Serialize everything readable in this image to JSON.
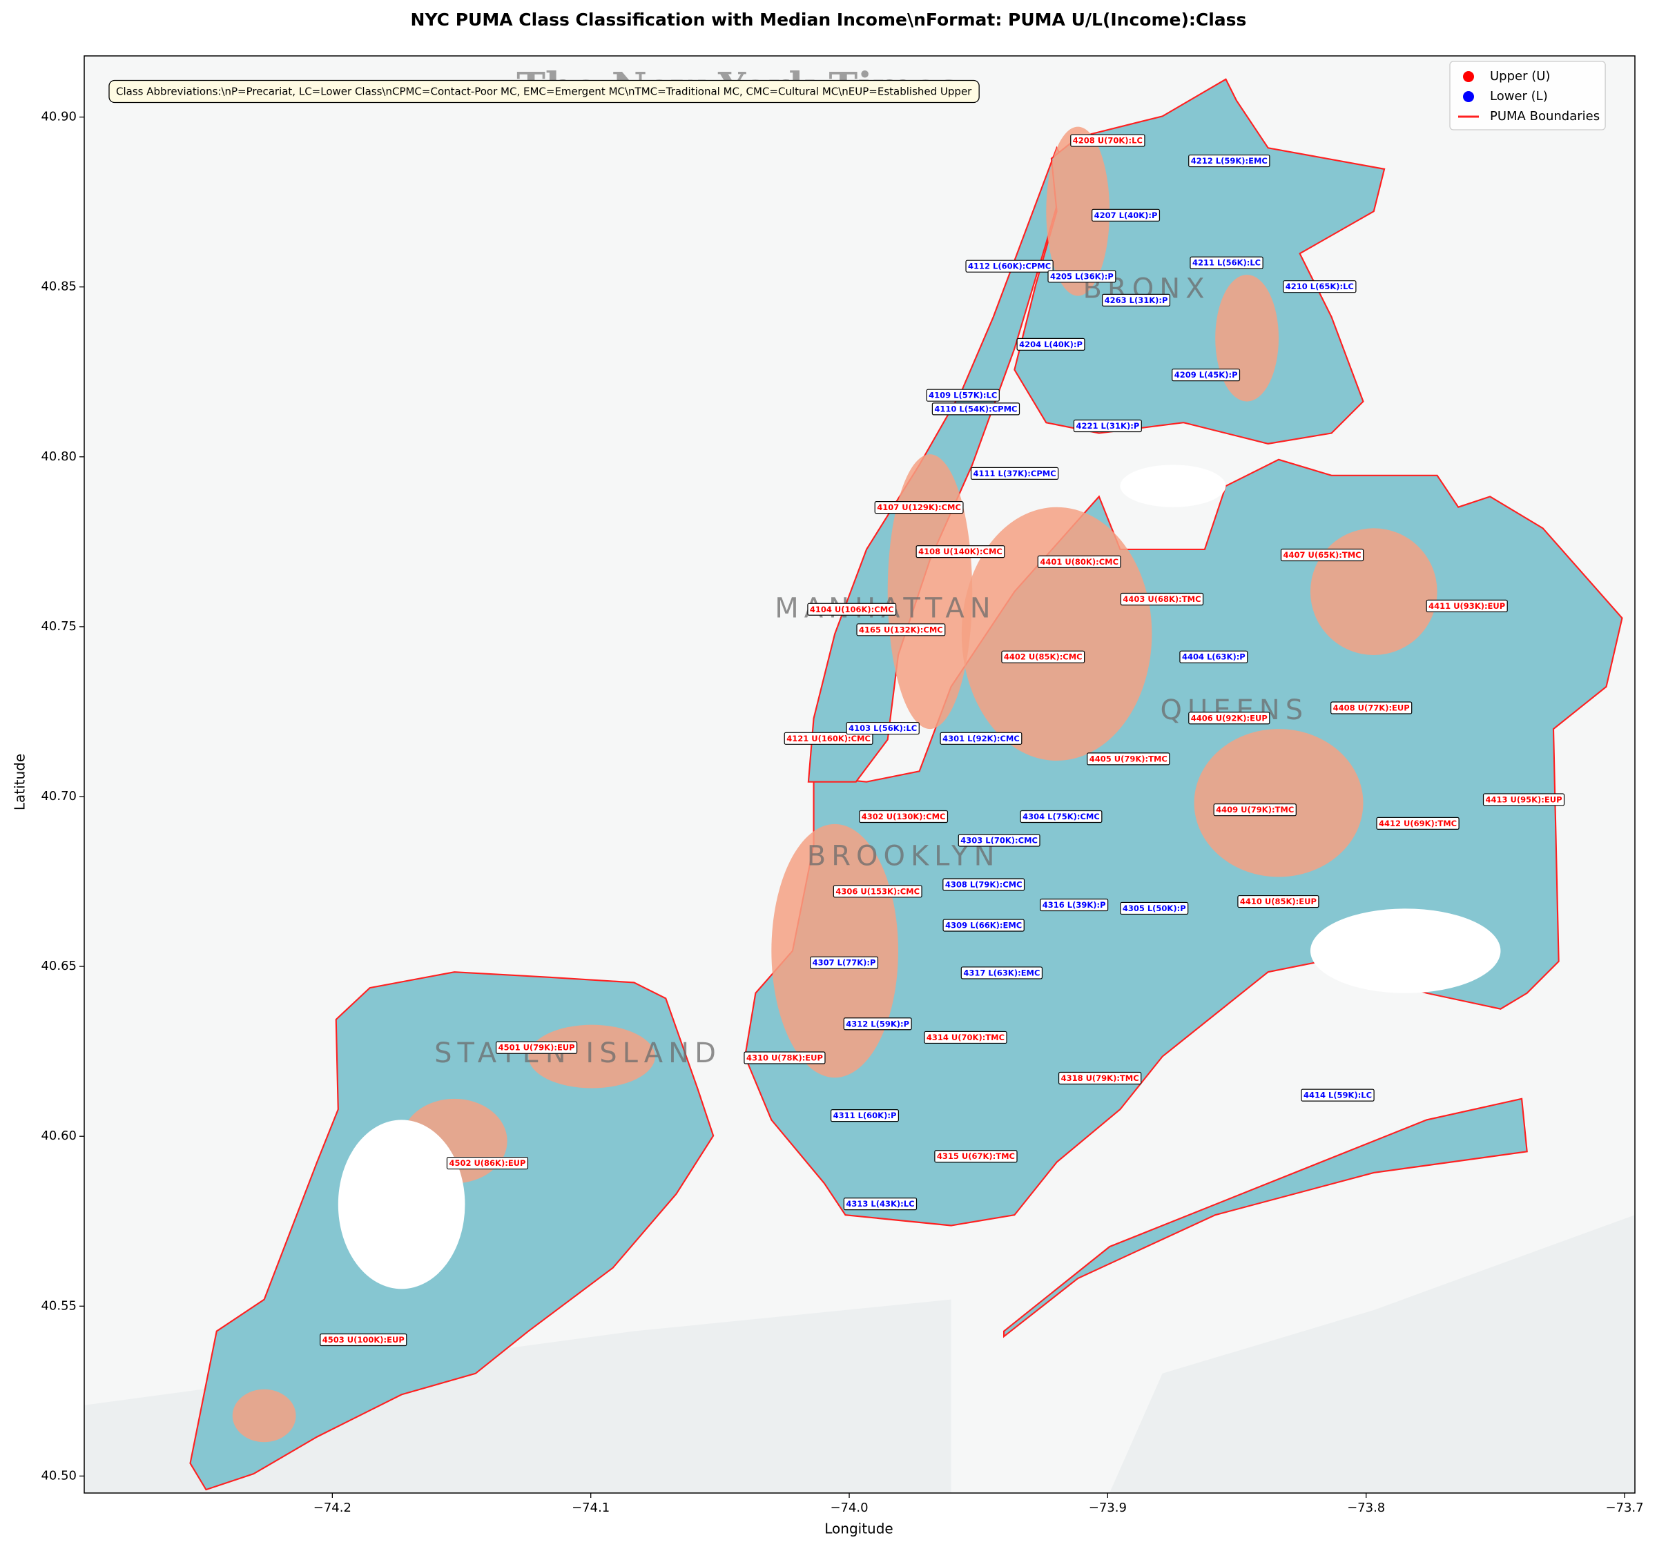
{
  "chart_data": {
    "type": "map",
    "title": "NYC PUMA Class Classification with Median Income\\nFormat: PUMA U/L(Income):Class",
    "xlabel": "Longitude",
    "ylabel": "Latitude",
    "xlim": [
      -74.296,
      -73.696
    ],
    "ylim": [
      40.495,
      40.918
    ],
    "xticks": [
      {
        "value": -74.2,
        "label": "−74.2"
      },
      {
        "value": -74.1,
        "label": "−74.1"
      },
      {
        "value": -74.0,
        "label": "−74.0"
      },
      {
        "value": -73.9,
        "label": "−73.9"
      },
      {
        "value": -73.8,
        "label": "−73.8"
      },
      {
        "value": -73.7,
        "label": "−73.7"
      }
    ],
    "yticks": [
      {
        "value": 40.5,
        "label": "40.50"
      },
      40.55,
      {
        "value": 40.6,
        "label": "40.60"
      },
      40.65,
      {
        "value": 40.7,
        "label": "40.70"
      },
      40.75,
      {
        "value": 40.8,
        "label": "40.80"
      },
      40.85,
      {
        "value": 40.9,
        "label": "40.90"
      }
    ],
    "annotation": "Class Abbreviations:\\nP=Precariat, LC=Lower Class\\nCPMC=Contact-Poor MC, EMC=Emergent MC\\nTMC=Traditional MC, CMC=Cultural MC\\nEUP=Established Upper",
    "legend": "upper right",
    "series": [
      {
        "name": "Upper (U)",
        "color": "#ff0000",
        "marker": "circle",
        "labels": [
          {
            "text": "4208 U(70K):LC",
            "x": -73.9,
            "y": 40.893
          },
          {
            "text": "4107 U(129K):CMC",
            "x": -73.973,
            "y": 40.785
          },
          {
            "text": "4108 U(140K):CMC",
            "x": -73.957,
            "y": 40.772
          },
          {
            "text": "4401 U(80K):CMC",
            "x": -73.911,
            "y": 40.769
          },
          {
            "text": "4407 U(65K):TMC",
            "x": -73.817,
            "y": 40.771
          },
          {
            "text": "4403 U(68K):TMC",
            "x": -73.879,
            "y": 40.758
          },
          {
            "text": "4104 U(106K):CMC",
            "x": -73.999,
            "y": 40.755
          },
          {
            "text": "4411 U(93K):EUP",
            "x": -73.761,
            "y": 40.756
          },
          {
            "text": "4165 U(132K):CMC",
            "x": -73.98,
            "y": 40.749
          },
          {
            "text": "4402 U(85K):CMC",
            "x": -73.925,
            "y": 40.741
          },
          {
            "text": "4406 U(92K):EUP",
            "x": -73.853,
            "y": 40.723
          },
          {
            "text": "4408 U(77K):EUP",
            "x": -73.798,
            "y": 40.726
          },
          {
            "text": "4121 U(160K):CMC",
            "x": -74.008,
            "y": 40.717
          },
          {
            "text": "4405 U(79K):TMC",
            "x": -73.892,
            "y": 40.711
          },
          {
            "text": "4413 U(95K):EUP",
            "x": -73.739,
            "y": 40.699
          },
          {
            "text": "4302 U(130K):CMC",
            "x": -73.979,
            "y": 40.694
          },
          {
            "text": "4409 U(79K):TMC",
            "x": -73.843,
            "y": 40.696
          },
          {
            "text": "4412 U(69K):TMC",
            "x": -73.78,
            "y": 40.692
          },
          {
            "text": "4306 U(153K):CMC",
            "x": -73.989,
            "y": 40.672
          },
          {
            "text": "4410 U(85K):EUP",
            "x": -73.834,
            "y": 40.669
          },
          {
            "text": "4314 U(70K):TMC",
            "x": -73.955,
            "y": 40.629
          },
          {
            "text": "4501 U(79K):EUP",
            "x": -74.121,
            "y": 40.626
          },
          {
            "text": "4310 U(78K):EUP",
            "x": -74.025,
            "y": 40.623
          },
          {
            "text": "4318 U(79K):TMC",
            "x": -73.903,
            "y": 40.617
          },
          {
            "text": "4502 U(86K):EUP",
            "x": -74.14,
            "y": 40.592
          },
          {
            "text": "4315 U(67K):TMC",
            "x": -73.951,
            "y": 40.594
          },
          {
            "text": "4503 U(100K):EUP",
            "x": -74.188,
            "y": 40.54
          }
        ]
      },
      {
        "name": "Lower (L)",
        "color": "#0000ff",
        "marker": "circle",
        "labels": [
          {
            "text": "4212 L(59K):EMC",
            "x": -73.853,
            "y": 40.887
          },
          {
            "text": "4207 L(40K):P",
            "x": -73.893,
            "y": 40.871
          },
          {
            "text": "4112 L(60K):CPMC",
            "x": -73.938,
            "y": 40.856
          },
          {
            "text": "4205 L(36K):P",
            "x": -73.91,
            "y": 40.853
          },
          {
            "text": "4211 L(56K):LC",
            "x": -73.854,
            "y": 40.857
          },
          {
            "text": "4210 L(65K):LC",
            "x": -73.818,
            "y": 40.85
          },
          {
            "text": "4263 L(31K):P",
            "x": -73.889,
            "y": 40.846
          },
          {
            "text": "4204 L(40K):P",
            "x": -73.922,
            "y": 40.833
          },
          {
            "text": "4209 L(45K):P",
            "x": -73.862,
            "y": 40.824
          },
          {
            "text": "4109 L(57K):LC",
            "x": -73.956,
            "y": 40.818
          },
          {
            "text": "4110 L(54K):CPMC",
            "x": -73.951,
            "y": 40.814
          },
          {
            "text": "4221 L(31K):P",
            "x": -73.9,
            "y": 40.809
          },
          {
            "text": "4111 L(37K):CPMC",
            "x": -73.936,
            "y": 40.795
          },
          {
            "text": "4404 L(63K):P",
            "x": -73.859,
            "y": 40.741
          },
          {
            "text": "4103 L(56K):LC",
            "x": -73.987,
            "y": 40.72
          },
          {
            "text": "4301 L(92K):CMC",
            "x": -73.949,
            "y": 40.717
          },
          {
            "text": "4304 L(75K):CMC",
            "x": -73.918,
            "y": 40.694
          },
          {
            "text": "4303 L(70K):CMC",
            "x": -73.942,
            "y": 40.687
          },
          {
            "text": "4308 L(79K):CMC",
            "x": -73.948,
            "y": 40.674
          },
          {
            "text": "4316 L(39K):P",
            "x": -73.913,
            "y": 40.668
          },
          {
            "text": "4305 L(50K):P",
            "x": -73.882,
            "y": 40.667
          },
          {
            "text": "4309 L(66K):EMC",
            "x": -73.948,
            "y": 40.662
          },
          {
            "text": "4307 L(77K):P",
            "x": -74.002,
            "y": 40.651
          },
          {
            "text": "4317 L(63K):EMC",
            "x": -73.941,
            "y": 40.648
          },
          {
            "text": "4312 L(59K):P",
            "x": -73.989,
            "y": 40.633
          },
          {
            "text": "4414 L(59K):LC",
            "x": -73.811,
            "y": 40.612
          },
          {
            "text": "4311 L(60K):P",
            "x": -73.994,
            "y": 40.606
          },
          {
            "text": "4313 L(43K):LC",
            "x": -73.988,
            "y": 40.58
          }
        ]
      },
      {
        "name": "PUMA Boundaries",
        "color": "#ff2020",
        "marker": "line"
      }
    ],
    "place_labels": [
      {
        "text": "MANHATTAN",
        "x": -73.986,
        "y": 40.755
      },
      {
        "text": "BRONX",
        "x": -73.885,
        "y": 40.849
      },
      {
        "text": "QUEENS",
        "x": -73.851,
        "y": 40.725
      },
      {
        "text": "BROOKLYN",
        "x": -73.979,
        "y": 40.682
      },
      {
        "text": "STATEN ISLAND",
        "x": -74.105,
        "y": 40.624
      }
    ],
    "watermark": {
      "text": "The New York Times",
      "x": -74.043,
      "y": 40.908
    }
  }
}
